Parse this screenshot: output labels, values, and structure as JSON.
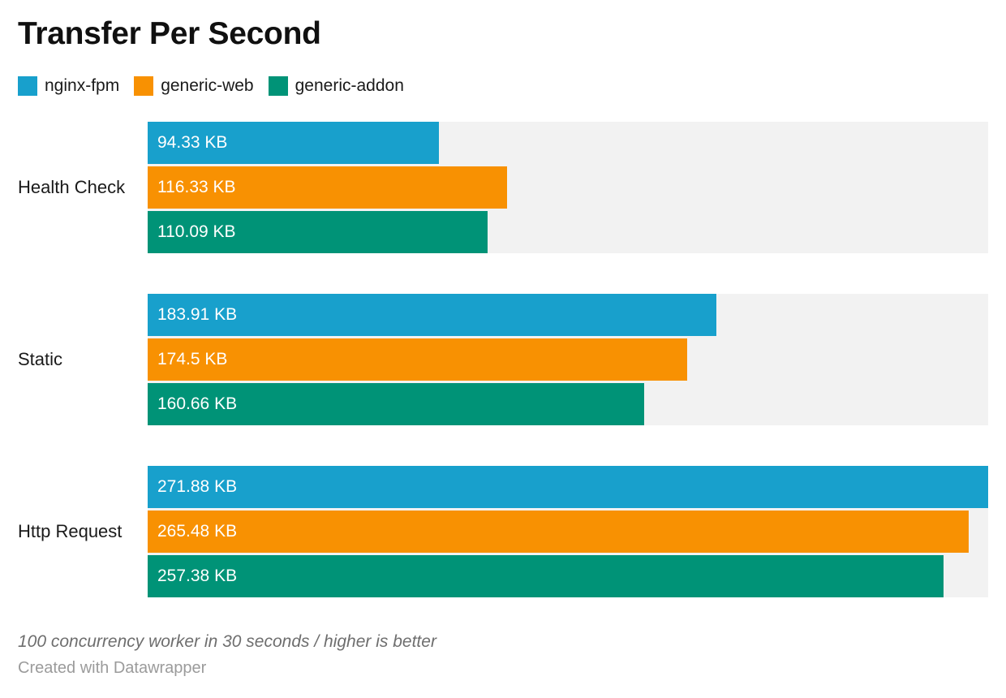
{
  "header": {
    "title": "Transfer Per Second"
  },
  "footer": {
    "note": "100 concurrency worker in 30 seconds / higher is better",
    "credit": "Created with Datawrapper"
  },
  "colors": {
    "title_text": "#101010",
    "label_text": "#1a1a1a",
    "bar_label_text": "#ffffff",
    "track": "#f2f2f2",
    "note_text": "#6e6e6e",
    "credit_text": "#9b9b9b"
  },
  "chart_data": {
    "type": "bar",
    "orientation": "horizontal",
    "title": "Transfer Per Second",
    "categories": [
      "Health Check",
      "Static",
      "Http Request"
    ],
    "series": [
      {
        "name": "nginx-fpm",
        "color": "#18a0cc",
        "values": [
          94.33,
          183.91,
          271.88
        ]
      },
      {
        "name": "generic-web",
        "color": "#f89102",
        "values": [
          116.33,
          174.5,
          265.48
        ]
      },
      {
        "name": "generic-addon",
        "color": "#009377",
        "values": [
          110.09,
          160.66,
          257.38
        ]
      }
    ],
    "value_suffix": " KB",
    "value_labels_position": "inside-start",
    "xmax": 271.88,
    "axis_hidden": true,
    "grid": false,
    "legend_position": "top",
    "note": "100 concurrency worker in 30 seconds / higher is better",
    "source_credit": "Created with Datawrapper"
  }
}
